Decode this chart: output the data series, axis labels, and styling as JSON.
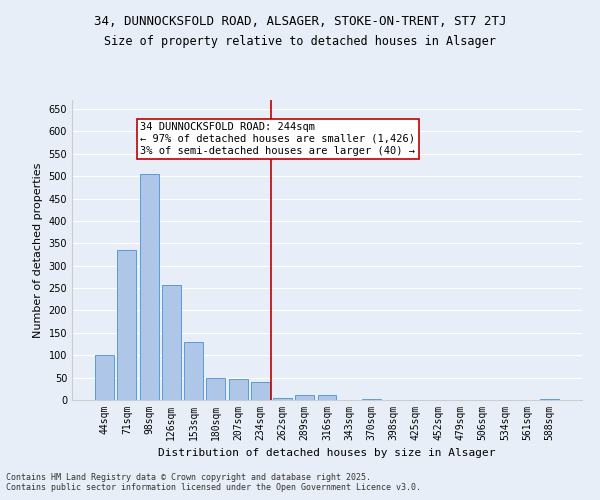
{
  "title1": "34, DUNNOCKSFOLD ROAD, ALSAGER, STOKE-ON-TRENT, ST7 2TJ",
  "title2": "Size of property relative to detached houses in Alsager",
  "xlabel": "Distribution of detached houses by size in Alsager",
  "ylabel": "Number of detached properties",
  "categories": [
    "44sqm",
    "71sqm",
    "98sqm",
    "126sqm",
    "153sqm",
    "180sqm",
    "207sqm",
    "234sqm",
    "262sqm",
    "289sqm",
    "316sqm",
    "343sqm",
    "370sqm",
    "398sqm",
    "425sqm",
    "452sqm",
    "479sqm",
    "506sqm",
    "534sqm",
    "561sqm",
    "588sqm"
  ],
  "values": [
    100,
    335,
    505,
    257,
    130,
    50,
    47,
    40,
    5,
    12,
    12,
    0,
    2,
    0,
    0,
    0,
    0,
    0,
    0,
    0,
    2
  ],
  "bar_color": "#aec6e8",
  "bar_edge_color": "#5b9bd5",
  "vline_x": 7.5,
  "vline_color": "#c00000",
  "annotation_text": "34 DUNNOCKSFOLD ROAD: 244sqm\n← 97% of detached houses are smaller (1,426)\n3% of semi-detached houses are larger (40) →",
  "annotation_box_color": "#ffffff",
  "annotation_border_color": "#c00000",
  "ylim": [
    0,
    670
  ],
  "yticks": [
    0,
    50,
    100,
    150,
    200,
    250,
    300,
    350,
    400,
    450,
    500,
    550,
    600,
    650
  ],
  "background_color": "#e8eef7",
  "grid_color": "#ffffff",
  "footer1": "Contains HM Land Registry data © Crown copyright and database right 2025.",
  "footer2": "Contains public sector information licensed under the Open Government Licence v3.0.",
  "title1_fontsize": 9,
  "title2_fontsize": 8.5,
  "axis_label_fontsize": 8,
  "tick_fontsize": 7,
  "annotation_fontsize": 7.5,
  "footer_fontsize": 6
}
